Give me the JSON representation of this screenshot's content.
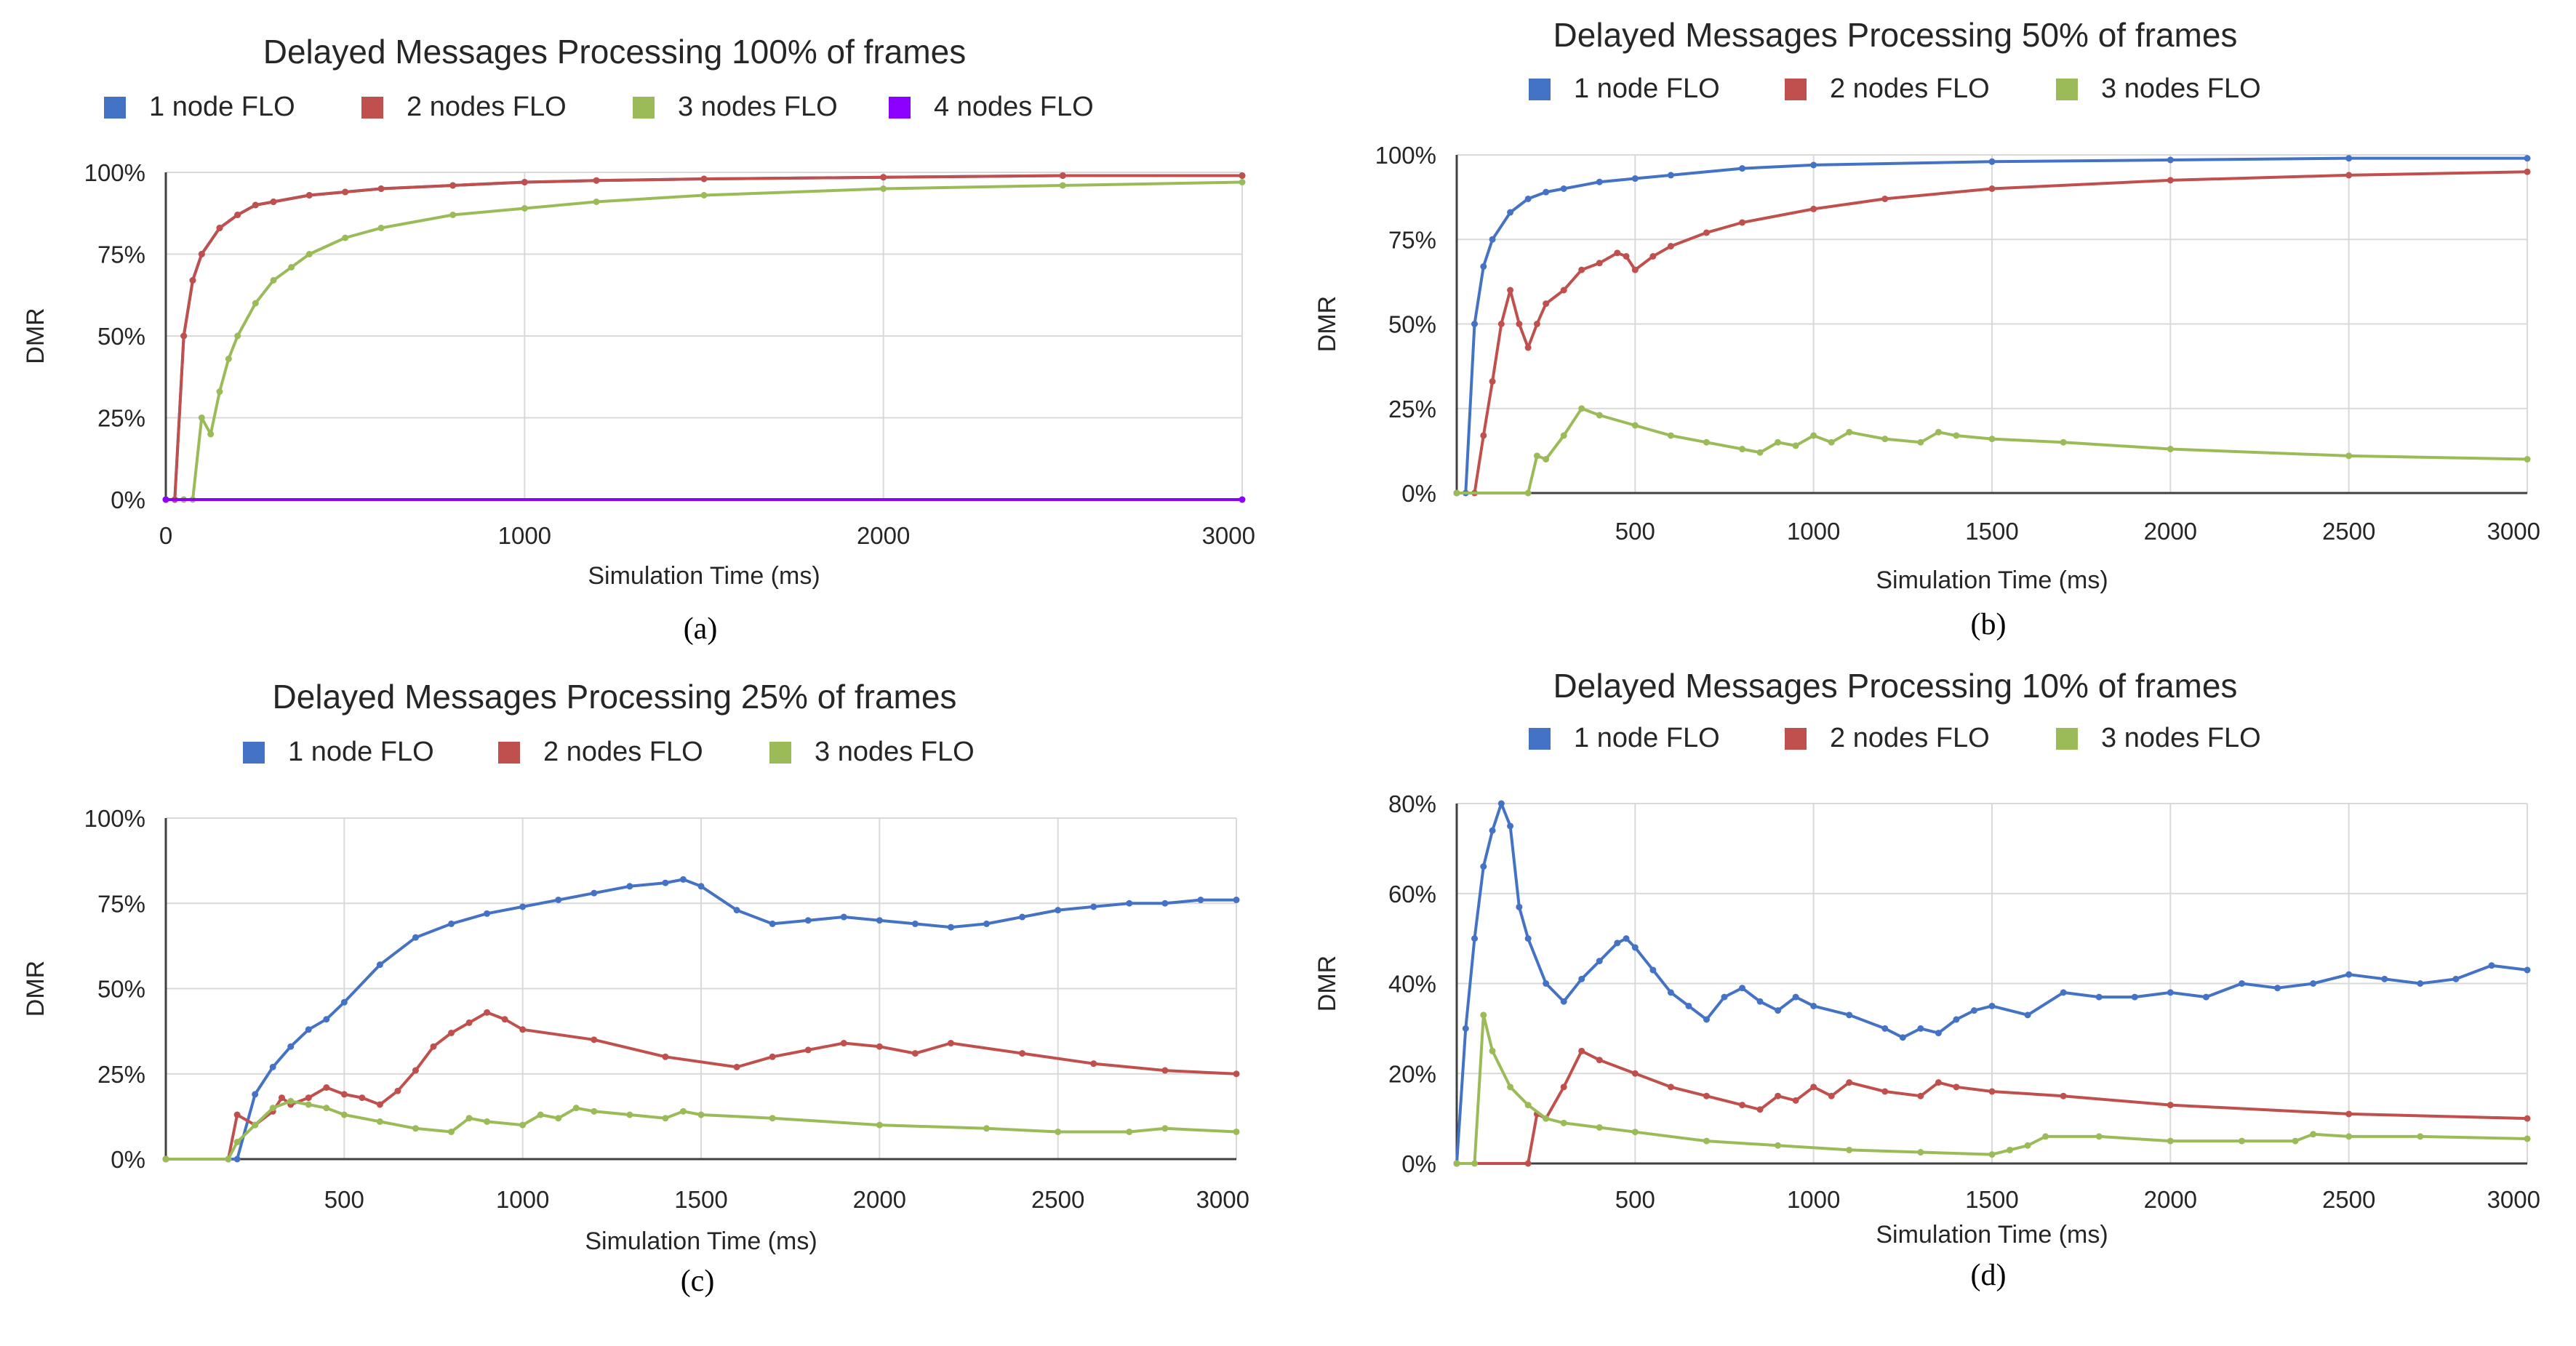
{
  "chart_data": [
    {
      "type": "line",
      "title": "Delayed Messages Processing 100% of frames",
      "caption": "(a)",
      "xlabel": "Simulation Time (ms)",
      "ylabel": "DMR",
      "xlim": [
        0,
        3000
      ],
      "ylim": [
        0,
        100
      ],
      "xticks": [
        0,
        1000,
        2000,
        3000
      ],
      "xtick_labels": [
        "0",
        "1000",
        "2000",
        "3000"
      ],
      "yticks": [
        0,
        25,
        50,
        75,
        100
      ],
      "ytick_labels": [
        "0%",
        "25%",
        "50%",
        "75%",
        "100%"
      ],
      "grid": true,
      "legend_position": "top",
      "series": [
        {
          "name": "1 node FLO",
          "color": "#4472C4",
          "x": [
            0,
            25,
            50,
            75,
            100,
            150,
            200,
            250,
            300,
            400,
            500,
            600,
            800,
            1000,
            1200,
            1500,
            2000,
            2500,
            3000
          ],
          "values": [
            0,
            0,
            50,
            67,
            75,
            83,
            87,
            90,
            91,
            93,
            94,
            95,
            96,
            97,
            97.5,
            98,
            98.5,
            99,
            99
          ]
        },
        {
          "name": "2 nodes FLO",
          "color": "#C0504D",
          "x": [
            0,
            25,
            50,
            75,
            100,
            150,
            200,
            250,
            300,
            400,
            500,
            600,
            800,
            1000,
            1200,
            1500,
            2000,
            2500,
            3000
          ],
          "values": [
            0,
            0,
            50,
            67,
            75,
            83,
            87,
            90,
            91,
            93,
            94,
            95,
            96,
            97,
            97.5,
            98,
            98.5,
            99,
            99
          ]
        },
        {
          "name": "3 nodes FLO",
          "color": "#9BBB59",
          "x": [
            0,
            50,
            75,
            100,
            125,
            150,
            175,
            200,
            250,
            300,
            350,
            400,
            500,
            600,
            800,
            1000,
            1200,
            1500,
            2000,
            2500,
            3000
          ],
          "values": [
            0,
            0,
            0,
            25,
            20,
            33,
            43,
            50,
            60,
            67,
            71,
            75,
            80,
            83,
            87,
            89,
            91,
            93,
            95,
            96,
            97
          ]
        },
        {
          "name": "4 nodes FLO",
          "color": "#8B00FF",
          "x": [
            0,
            3000
          ],
          "values": [
            0,
            0
          ]
        }
      ]
    },
    {
      "type": "line",
      "title": "Delayed Messages Processing 50% of frames",
      "caption": "(b)",
      "xlabel": "Simulation Time (ms)",
      "ylabel": "DMR",
      "xlim": [
        0,
        3000
      ],
      "ylim": [
        0,
        100
      ],
      "xticks": [
        500,
        1000,
        1500,
        2000,
        2500,
        3000
      ],
      "xtick_labels": [
        "500",
        "1000",
        "1500",
        "2000",
        "2500",
        "3000"
      ],
      "yticks": [
        0,
        25,
        50,
        75,
        100
      ],
      "ytick_labels": [
        "0%",
        "25%",
        "50%",
        "75%",
        "100%"
      ],
      "grid": true,
      "legend_position": "top",
      "series": [
        {
          "name": "1 node FLO",
          "color": "#4472C4",
          "x": [
            0,
            25,
            50,
            75,
            100,
            150,
            200,
            250,
            300,
            400,
            500,
            600,
            800,
            1000,
            1500,
            2000,
            2500,
            3000
          ],
          "values": [
            0,
            0,
            50,
            67,
            75,
            83,
            87,
            89,
            90,
            92,
            93,
            94,
            96,
            97,
            98,
            98.5,
            99,
            99
          ]
        },
        {
          "name": "2 nodes FLO",
          "color": "#C0504D",
          "x": [
            0,
            50,
            75,
            100,
            125,
            150,
            175,
            200,
            225,
            250,
            300,
            350,
            400,
            450,
            475,
            500,
            550,
            600,
            700,
            800,
            1000,
            1200,
            1500,
            2000,
            2500,
            3000
          ],
          "values": [
            0,
            0,
            17,
            33,
            50,
            60,
            50,
            43,
            50,
            56,
            60,
            66,
            68,
            71,
            70,
            66,
            70,
            73,
            77,
            80,
            84,
            87,
            90,
            92.5,
            94,
            95
          ]
        },
        {
          "name": "3 nodes FLO",
          "color": "#9BBB59",
          "x": [
            0,
            200,
            225,
            250,
            300,
            350,
            400,
            500,
            600,
            700,
            800,
            850,
            900,
            950,
            1000,
            1050,
            1100,
            1200,
            1300,
            1350,
            1400,
            1500,
            1700,
            2000,
            2500,
            3000
          ],
          "values": [
            0,
            0,
            11,
            10,
            17,
            25,
            23,
            20,
            17,
            15,
            13,
            12,
            15,
            14,
            17,
            15,
            18,
            16,
            15,
            18,
            17,
            16,
            15,
            13,
            11,
            10
          ]
        }
      ]
    },
    {
      "type": "line",
      "title": "Delayed Messages Processing 25% of frames",
      "caption": "(c)",
      "xlabel": "Simulation Time (ms)",
      "ylabel": "DMR",
      "xlim": [
        0,
        3000
      ],
      "ylim": [
        0,
        100
      ],
      "xticks": [
        500,
        1000,
        1500,
        2000,
        2500,
        3000
      ],
      "xtick_labels": [
        "500",
        "1000",
        "1500",
        "2000",
        "2500",
        "3000"
      ],
      "yticks": [
        0,
        25,
        50,
        75,
        100
      ],
      "ytick_labels": [
        "0%",
        "25%",
        "50%",
        "75%",
        "100%"
      ],
      "grid": true,
      "legend_position": "top",
      "series": [
        {
          "name": "1 node FLO",
          "color": "#4472C4",
          "x": [
            0,
            200,
            250,
            300,
            350,
            400,
            450,
            500,
            600,
            700,
            800,
            900,
            1000,
            1100,
            1200,
            1300,
            1400,
            1450,
            1500,
            1600,
            1700,
            1800,
            1900,
            2000,
            2100,
            2200,
            2300,
            2400,
            2500,
            2600,
            2700,
            2800,
            2900,
            3000
          ],
          "values": [
            0,
            0,
            19,
            27,
            33,
            38,
            41,
            46,
            57,
            65,
            69,
            72,
            74,
            76,
            78,
            80,
            81,
            82,
            80,
            73,
            69,
            70,
            71,
            70,
            69,
            68,
            69,
            71,
            73,
            74,
            75,
            75,
            76,
            76
          ]
        },
        {
          "name": "2 nodes FLO",
          "color": "#C0504D",
          "x": [
            0,
            175,
            200,
            250,
            300,
            325,
            350,
            400,
            450,
            500,
            550,
            600,
            650,
            700,
            750,
            800,
            850,
            900,
            950,
            1000,
            1200,
            1400,
            1600,
            1700,
            1800,
            1900,
            2000,
            2100,
            2200,
            2400,
            2600,
            2800,
            3000
          ],
          "values": [
            0,
            0,
            13,
            10,
            14,
            18,
            16,
            18,
            21,
            19,
            18,
            16,
            20,
            26,
            33,
            37,
            40,
            43,
            41,
            38,
            35,
            30,
            27,
            30,
            32,
            34,
            33,
            31,
            34,
            31,
            28,
            26,
            25
          ]
        },
        {
          "name": "3 nodes FLO",
          "color": "#9BBB59",
          "x": [
            0,
            175,
            200,
            250,
            300,
            350,
            400,
            450,
            500,
            600,
            700,
            800,
            850,
            900,
            1000,
            1050,
            1100,
            1150,
            1200,
            1300,
            1400,
            1450,
            1500,
            1700,
            2000,
            2300,
            2500,
            2700,
            2800,
            3000
          ],
          "values": [
            0,
            0,
            5,
            10,
            15,
            17,
            16,
            15,
            13,
            11,
            9,
            8,
            12,
            11,
            10,
            13,
            12,
            15,
            14,
            13,
            12,
            14,
            13,
            12,
            10,
            9,
            8,
            8,
            9,
            8
          ]
        }
      ]
    },
    {
      "type": "line",
      "title": "Delayed Messages Processing 10% of frames",
      "caption": "(d)",
      "xlabel": "Simulation Time (ms)",
      "ylabel": "DMR",
      "xlim": [
        0,
        3000
      ],
      "ylim": [
        0,
        80
      ],
      "xticks": [
        500,
        1000,
        1500,
        2000,
        2500,
        3000
      ],
      "xtick_labels": [
        "500",
        "1000",
        "1500",
        "2000",
        "2500",
        "3000"
      ],
      "yticks": [
        0,
        20,
        40,
        60,
        80
      ],
      "ytick_labels": [
        "0%",
        "20%",
        "40%",
        "60%",
        "80%"
      ],
      "grid": true,
      "legend_position": "top",
      "series": [
        {
          "name": "1 node FLO",
          "color": "#4472C4",
          "x": [
            0,
            25,
            50,
            75,
            100,
            125,
            150,
            175,
            200,
            250,
            300,
            350,
            400,
            450,
            475,
            500,
            550,
            600,
            650,
            700,
            750,
            800,
            850,
            900,
            950,
            1000,
            1100,
            1200,
            1250,
            1300,
            1350,
            1400,
            1450,
            1500,
            1600,
            1700,
            1800,
            1900,
            2000,
            2100,
            2200,
            2300,
            2400,
            2500,
            2600,
            2700,
            2800,
            2900,
            3000
          ],
          "values": [
            0,
            30,
            50,
            66,
            74,
            80,
            75,
            57,
            50,
            40,
            36,
            41,
            45,
            49,
            50,
            48,
            43,
            38,
            35,
            32,
            37,
            39,
            36,
            34,
            37,
            35,
            33,
            30,
            28,
            30,
            29,
            32,
            34,
            35,
            33,
            38,
            37,
            37,
            38,
            37,
            40,
            39,
            40,
            42,
            41,
            40,
            41,
            44,
            43
          ]
        },
        {
          "name": "2 nodes FLO",
          "color": "#C0504D",
          "x": [
            0,
            200,
            225,
            250,
            300,
            350,
            400,
            500,
            600,
            700,
            800,
            850,
            900,
            950,
            1000,
            1050,
            1100,
            1200,
            1300,
            1350,
            1400,
            1500,
            1700,
            2000,
            2500,
            3000
          ],
          "values": [
            0,
            0,
            11,
            10,
            17,
            25,
            23,
            20,
            17,
            15,
            13,
            12,
            15,
            14,
            17,
            15,
            18,
            16,
            15,
            18,
            17,
            16,
            15,
            13,
            11,
            10
          ]
        },
        {
          "name": "3 nodes FLO",
          "color": "#9BBB59",
          "x": [
            0,
            50,
            75,
            100,
            150,
            200,
            250,
            300,
            400,
            500,
            700,
            900,
            1100,
            1300,
            1500,
            1550,
            1600,
            1650,
            1800,
            2000,
            2200,
            2350,
            2400,
            2500,
            2700,
            3000
          ],
          "values": [
            0,
            0,
            33,
            25,
            17,
            13,
            10,
            9,
            8,
            7,
            5,
            4,
            3,
            2.5,
            2,
            3,
            4,
            6,
            6,
            5,
            5,
            5,
            6.5,
            6,
            6,
            5.5
          ]
        }
      ]
    }
  ]
}
